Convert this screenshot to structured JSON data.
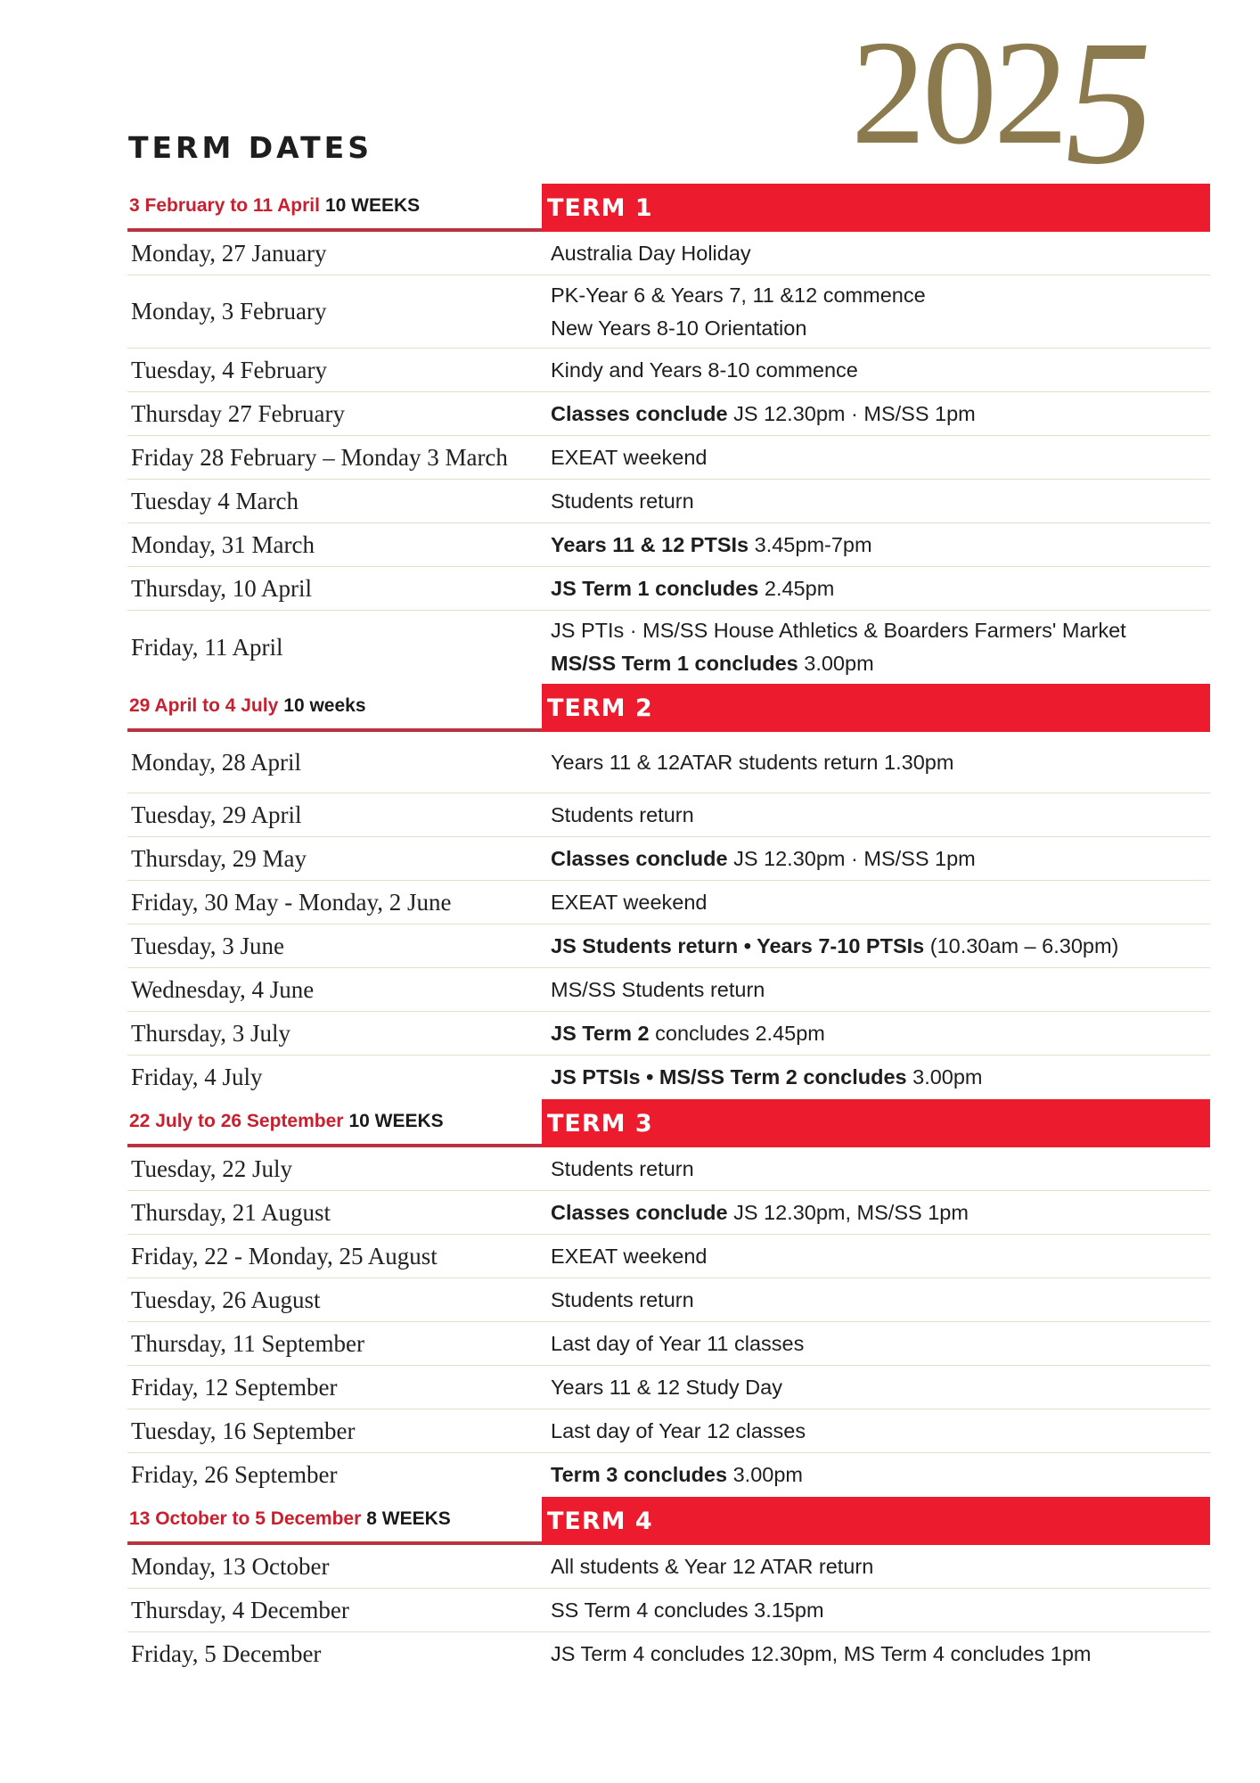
{
  "year": {
    "digits": "202",
    "last_digit": "5"
  },
  "title": "TERM DATES",
  "colors": {
    "gold": "#8c7a4f",
    "term_red": "#ec1c2e",
    "range_red": "#c8202f"
  },
  "terms": [
    {
      "label": "TERM 1",
      "range": "3 February to 11 April",
      "weeks": "10 WEEKS",
      "rows": [
        {
          "date": "Monday, 27 January",
          "lines": [
            [
              {
                "t": "Australia Day Holiday"
              }
            ]
          ]
        },
        {
          "date": "Monday, 3 February",
          "lines": [
            [
              {
                "t": "PK-Year 6 & Years 7, 11 &12 commence"
              }
            ],
            [
              {
                "t": "New Years 8-10 Orientation"
              }
            ]
          ]
        },
        {
          "date": "Tuesday, 4 February",
          "lines": [
            [
              {
                "t": "Kindy and Years 8-10 commence"
              }
            ]
          ]
        },
        {
          "date": "Thursday 27 February",
          "lines": [
            [
              {
                "t": "Classes conclude",
                "bold": true
              },
              {
                "t": " JS 12.30pm · MS/SS 1pm"
              }
            ]
          ]
        },
        {
          "date": "Friday 28 February – Monday 3 March",
          "lines": [
            [
              {
                "t": "EXEAT weekend"
              }
            ]
          ]
        },
        {
          "date": "Tuesday 4 March",
          "lines": [
            [
              {
                "t": "Students return"
              }
            ]
          ]
        },
        {
          "date": "Monday, 31 March",
          "lines": [
            [
              {
                "t": "Years 11 & 12 PTSIs",
                "bold": true
              },
              {
                "t": " 3.45pm-7pm"
              }
            ]
          ]
        },
        {
          "date": "Thursday, 10 April",
          "lines": [
            [
              {
                "t": "JS Term 1 concludes",
                "bold": true
              },
              {
                "t": " 2.45pm"
              }
            ]
          ]
        },
        {
          "date": "Friday, 11 April",
          "lines": [
            [
              {
                "t": "JS PTIs · MS/SS House Athletics & Boarders Farmers' Market"
              }
            ],
            [
              {
                "t": "MS/SS Term 1 concludes",
                "bold": true
              },
              {
                "t": " 3.00pm"
              }
            ]
          ]
        }
      ]
    },
    {
      "label": "TERM 2",
      "range": "29 April to 4 July",
      "weeks": "10 weeks",
      "rows": [
        {
          "date": "Monday, 28 April",
          "lines": [
            [
              {
                "t": "Years 11 & 12ATAR students return 1.30pm"
              }
            ]
          ]
        },
        {
          "date": "Tuesday, 29 April",
          "lines": [
            [
              {
                "t": "Students return"
              }
            ]
          ]
        },
        {
          "date": "Thursday, 29 May",
          "lines": [
            [
              {
                "t": "Classes conclude",
                "bold": true
              },
              {
                "t": " JS 12.30pm · MS/SS 1pm"
              }
            ]
          ]
        },
        {
          "date": "Friday, 30 May - Monday, 2 June",
          "lines": [
            [
              {
                "t": "EXEAT weekend"
              }
            ]
          ]
        },
        {
          "date": "Tuesday, 3 June",
          "lines": [
            [
              {
                "t": "JS Students return • Years 7-10 PTSIs",
                "bold": true
              },
              {
                "t": " (10.30am – 6.30pm)"
              }
            ]
          ]
        },
        {
          "date": "Wednesday, 4 June",
          "lines": [
            [
              {
                "t": "MS/SS Students  return"
              }
            ]
          ]
        },
        {
          "date": "Thursday, 3 July",
          "lines": [
            [
              {
                "t": "JS Term 2",
                "bold": true
              },
              {
                "t": " concludes 2.45pm"
              }
            ]
          ]
        },
        {
          "date": "Friday, 4 July",
          "lines": [
            [
              {
                "t": "JS PTSIs • MS/SS Term 2 concludes",
                "bold": true
              },
              {
                "t": " 3.00pm"
              }
            ]
          ]
        }
      ]
    },
    {
      "label": "TERM 3",
      "range": "22 July to 26 September",
      "weeks": "10 WEEKS",
      "rows": [
        {
          "date": "Tuesday, 22 July",
          "lines": [
            [
              {
                "t": "Students return"
              }
            ]
          ]
        },
        {
          "date": "Thursday, 21 August",
          "lines": [
            [
              {
                "t": "Classes conclude",
                "bold": true
              },
              {
                "t": " JS 12.30pm, MS/SS 1pm"
              }
            ]
          ]
        },
        {
          "date": "Friday, 22 - Monday, 25 August",
          "lines": [
            [
              {
                "t": "EXEAT weekend"
              }
            ]
          ]
        },
        {
          "date": "Tuesday, 26 August",
          "lines": [
            [
              {
                "t": "Students return"
              }
            ]
          ]
        },
        {
          "date": "Thursday, 11 September",
          "lines": [
            [
              {
                "t": "Last day of Year 11 classes"
              }
            ]
          ]
        },
        {
          "date": "Friday, 12 September",
          "lines": [
            [
              {
                "t": "Years 11 & 12 Study Day"
              }
            ]
          ]
        },
        {
          "date": "Tuesday, 16 September",
          "lines": [
            [
              {
                "t": "Last day of Year 12 classes"
              }
            ]
          ]
        },
        {
          "date": "Friday, 26 September",
          "lines": [
            [
              {
                "t": "Term 3 concludes",
                "bold": true
              },
              {
                "t": " 3.00pm"
              }
            ]
          ]
        }
      ]
    },
    {
      "label": "TERM 4",
      "range": "13 October to 5 December",
      "weeks": "8 WEEKS",
      "rows": [
        {
          "date": "Monday, 13 October",
          "lines": [
            [
              {
                "t": "All students & Year 12 ATAR return"
              }
            ]
          ]
        },
        {
          "date": "Thursday, 4 December",
          "lines": [
            [
              {
                "t": "SS Term 4 concludes 3.15pm"
              }
            ]
          ]
        },
        {
          "date": "Friday, 5 December",
          "lines": [
            [
              {
                "t": "JS Term 4 concludes 12.30pm, MS Term 4 concludes 1pm"
              }
            ]
          ]
        }
      ]
    }
  ]
}
